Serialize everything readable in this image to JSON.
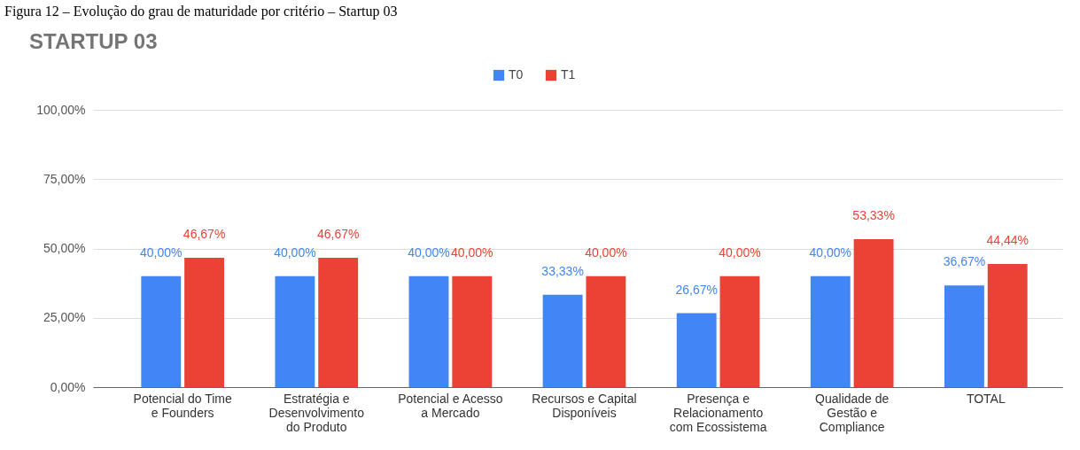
{
  "chart_data": {
    "type": "bar",
    "title": "STARTUP 03",
    "annotations": [
      "Figura 12 – Evolução do grau de maturidade por critério – Startup 03"
    ],
    "categories": [
      "Potencial do Time e Founders",
      "Estratégia e Desenvolvimento do Produto",
      "Potencial e Acesso a Mercado",
      "Recursos e Capital Disponíveis",
      "Presença e Relacionamento com Ecossistema",
      "Qualidade de Gestão e Compliance",
      "TOTAL"
    ],
    "series": [
      {
        "name": "T0",
        "color": "#4285f4",
        "values": [
          40,
          40,
          40,
          33.33,
          26.67,
          40,
          36.67
        ],
        "value_labels": [
          "40,00%",
          "40,00%",
          "40,00%",
          "33,33%",
          "26,67%",
          "40,00%",
          "36,67%"
        ]
      },
      {
        "name": "T1",
        "color": "#ea4335",
        "values": [
          46.67,
          46.67,
          40,
          40,
          40,
          53.33,
          44.44
        ],
        "value_labels": [
          "46,67%",
          "46,67%",
          "40,00%",
          "40,00%",
          "40,00%",
          "53,33%",
          "44,44%"
        ]
      }
    ],
    "ylim": [
      0,
      100
    ],
    "yticks": [
      {
        "value": 0,
        "label": "0,00%"
      },
      {
        "value": 25,
        "label": "25,00%"
      },
      {
        "value": 50,
        "label": "50,00%"
      },
      {
        "value": 75,
        "label": "75,00%"
      },
      {
        "value": 100,
        "label": "100,00%"
      }
    ],
    "grid": "y",
    "legend": "top"
  }
}
